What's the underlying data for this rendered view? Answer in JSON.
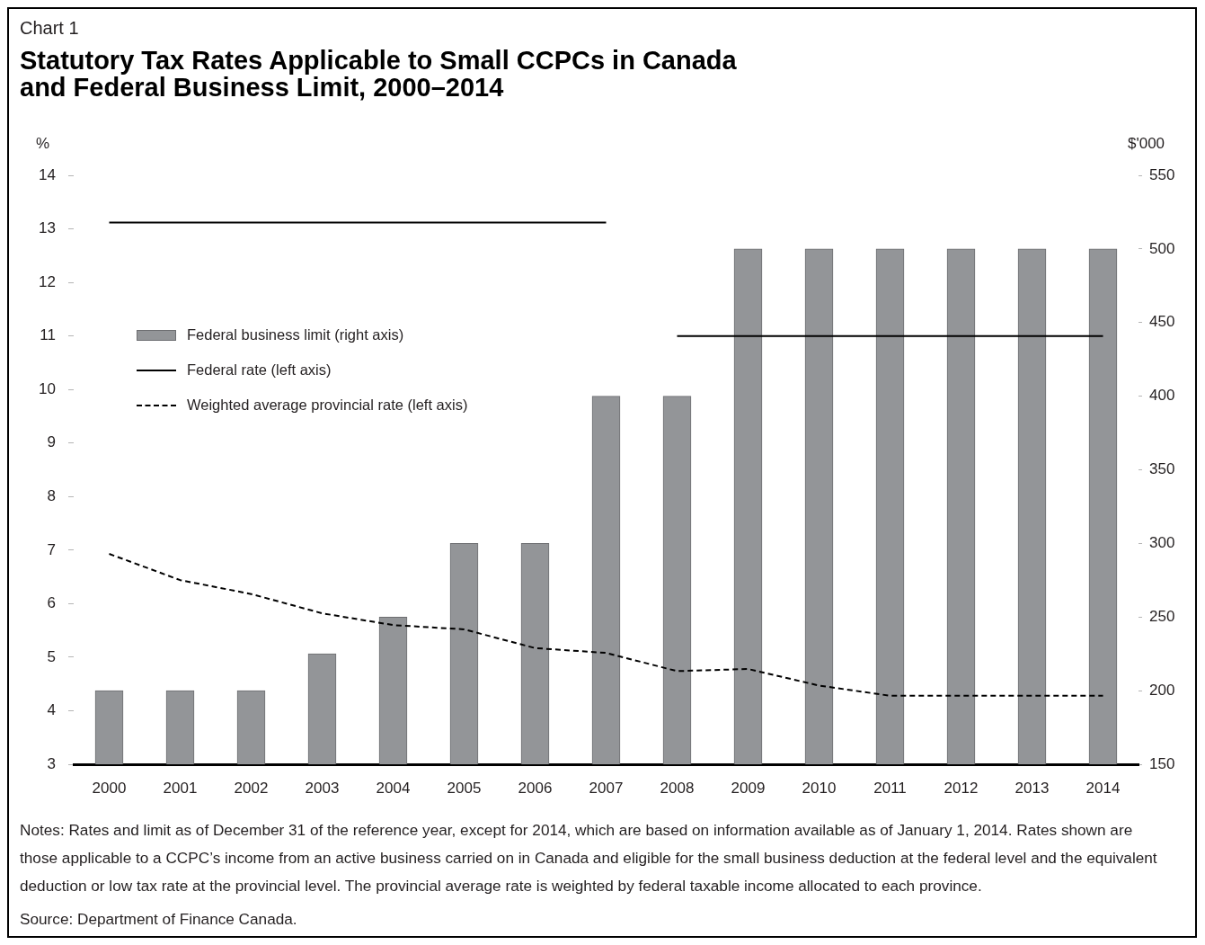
{
  "chart_data": {
    "type": "bar",
    "title": "Chart 1",
    "subtitle": "Statutory Tax Rates Applicable to Small CCPCs in Canada and Federal Business Limit, 2000–2014",
    "ylabel": "%",
    "y2label": "$'000",
    "categories": [
      "2000",
      "2001",
      "2002",
      "2003",
      "2004",
      "2005",
      "2006",
      "2007",
      "2008",
      "2009",
      "2010",
      "2011",
      "2012",
      "2013",
      "2014"
    ],
    "series": [
      {
        "name": "Federal business limit (right axis)",
        "axis": "y2",
        "color": "#939598",
        "values": [
          200,
          200,
          200,
          225,
          250,
          300,
          300,
          400,
          400,
          500,
          500,
          500,
          500,
          500,
          500
        ]
      },
      {
        "name": "Federal rate (left axis)",
        "type": "line",
        "color": "#000000",
        "line_style": "solid",
        "values": [
          13.12,
          13.12,
          13.12,
          13.12,
          13.12,
          13.12,
          13.12,
          13.12,
          null,
          null,
          null,
          null,
          null,
          null,
          null
        ]
      },
      {
        "type": "line",
        "color": "#000000",
        "line_style": "solid",
        "values": [
          null,
          null,
          null,
          null,
          null,
          null,
          null,
          null,
          11,
          11,
          11,
          11,
          11,
          11,
          11
        ]
      },
      {
        "name": "Weighted average provincial rate (left axis)",
        "type": "line",
        "color": "#000000",
        "line_style": "dashed",
        "values": [
          6.93,
          6.44,
          6.18,
          5.82,
          5.6,
          5.52,
          5.17,
          5.08,
          4.74,
          4.78,
          4.47,
          4.28,
          4.28,
          4.28,
          4.28
        ]
      }
    ],
    "ylim": [
      3,
      14
    ],
    "yticks": [
      3,
      4,
      5,
      6,
      7,
      8,
      9,
      10,
      11,
      12,
      13,
      14
    ],
    "y2lim": [
      150,
      550
    ],
    "y2ticks": [
      150,
      200,
      250,
      300,
      350,
      400,
      450,
      500,
      550
    ],
    "legend": "left",
    "annotations": [
      "Notes: Rates and limit as of December 31 of the reference year, except for 2014, which are based on information available as of January 1, 2014. Rates shown are those applicable to a CCPC’s income from an active business carried on in Canada and eligible for the small business deduction at the federal level and the equivalent deduction or low tax rate at the provincial level. The provincial average rate is weighted by federal taxable income allocated to each province.",
      "Source: Department of Finance Canada."
    ]
  }
}
